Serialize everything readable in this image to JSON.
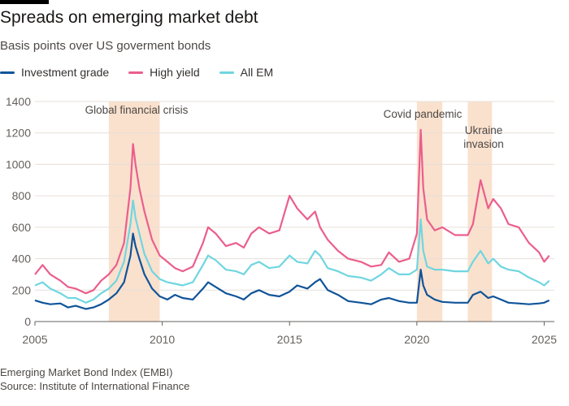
{
  "title": "Spreads on emerging market debt",
  "subtitle": "Basis points over US goverment bonds",
  "source_note": "Emerging Market Bond Index (EMBI)",
  "source": "Source: Institute of International Finance",
  "chart_data": {
    "type": "line",
    "title": "Spreads on emerging market debt",
    "ylabel": "",
    "xlabel": "",
    "xlim": [
      2005.0,
      2025.4
    ],
    "ylim": [
      0,
      1400
    ],
    "yticks": [
      0,
      200,
      400,
      600,
      800,
      1000,
      1200,
      1400
    ],
    "xticks": [
      "2005",
      "2010",
      "2015",
      "2020",
      "2025"
    ],
    "grid": "horizontal",
    "legend": "top-left",
    "shaded_periods": [
      {
        "label": "Global financial crisis",
        "start": 2007.9,
        "end": 2009.9
      },
      {
        "label": "Covid pandemic",
        "start": 2020.0,
        "end": 2021.0
      },
      {
        "label": "Ukraine invasion",
        "start": 2022.0,
        "end": 2022.95
      }
    ],
    "series": [
      {
        "name": "Investment grade",
        "color": "#0f5499",
        "x": [
          2005.0,
          2005.3,
          2005.6,
          2006.0,
          2006.3,
          2006.6,
          2007.0,
          2007.3,
          2007.6,
          2007.9,
          2008.2,
          2008.5,
          2008.75,
          2008.85,
          2008.95,
          2009.1,
          2009.3,
          2009.6,
          2009.9,
          2010.2,
          2010.5,
          2010.8,
          2011.2,
          2011.6,
          2011.8,
          2012.1,
          2012.5,
          2012.9,
          2013.2,
          2013.5,
          2013.8,
          2014.2,
          2014.6,
          2015.0,
          2015.3,
          2015.7,
          2016.0,
          2016.2,
          2016.5,
          2016.9,
          2017.3,
          2017.8,
          2018.2,
          2018.6,
          2018.9,
          2019.3,
          2019.7,
          2020.0,
          2020.15,
          2020.25,
          2020.4,
          2020.7,
          2021.0,
          2021.5,
          2022.0,
          2022.2,
          2022.5,
          2022.8,
          2023.0,
          2023.3,
          2023.6,
          2024.0,
          2024.4,
          2024.8,
          2025.0,
          2025.2
        ],
        "y": [
          135,
          120,
          110,
          115,
          90,
          100,
          80,
          90,
          110,
          140,
          180,
          250,
          420,
          560,
          480,
          400,
          300,
          210,
          160,
          140,
          170,
          150,
          140,
          210,
          250,
          220,
          180,
          160,
          140,
          180,
          200,
          170,
          160,
          190,
          230,
          210,
          250,
          270,
          200,
          170,
          130,
          120,
          110,
          140,
          150,
          130,
          120,
          120,
          330,
          230,
          170,
          140,
          125,
          120,
          120,
          170,
          190,
          150,
          160,
          140,
          120,
          115,
          110,
          115,
          120,
          135
        ]
      },
      {
        "name": "High yield",
        "color": "#eb5e8d",
        "x": [
          2005.0,
          2005.3,
          2005.6,
          2006.0,
          2006.3,
          2006.6,
          2007.0,
          2007.3,
          2007.6,
          2007.9,
          2008.2,
          2008.5,
          2008.75,
          2008.85,
          2008.95,
          2009.1,
          2009.3,
          2009.6,
          2009.9,
          2010.2,
          2010.5,
          2010.8,
          2011.2,
          2011.6,
          2011.8,
          2012.1,
          2012.5,
          2012.9,
          2013.2,
          2013.5,
          2013.8,
          2014.2,
          2014.6,
          2015.0,
          2015.3,
          2015.7,
          2016.0,
          2016.2,
          2016.5,
          2016.9,
          2017.3,
          2017.8,
          2018.2,
          2018.6,
          2018.9,
          2019.3,
          2019.7,
          2020.0,
          2020.15,
          2020.25,
          2020.4,
          2020.7,
          2021.0,
          2021.5,
          2022.0,
          2022.2,
          2022.5,
          2022.8,
          2023.0,
          2023.3,
          2023.6,
          2024.0,
          2024.4,
          2024.8,
          2025.0,
          2025.2
        ],
        "y": [
          300,
          360,
          300,
          260,
          220,
          210,
          180,
          200,
          260,
          300,
          360,
          500,
          850,
          1130,
          1000,
          850,
          700,
          520,
          420,
          380,
          340,
          320,
          350,
          500,
          600,
          560,
          480,
          500,
          470,
          560,
          600,
          560,
          580,
          800,
          720,
          650,
          700,
          600,
          520,
          450,
          400,
          380,
          350,
          360,
          440,
          380,
          400,
          560,
          1220,
          850,
          650,
          580,
          600,
          550,
          550,
          620,
          900,
          720,
          780,
          720,
          620,
          600,
          500,
          440,
          380,
          420
        ]
      },
      {
        "name": "All EM",
        "color": "#6fd6e0",
        "x": [
          2005.0,
          2005.3,
          2005.6,
          2006.0,
          2006.3,
          2006.6,
          2007.0,
          2007.3,
          2007.6,
          2007.9,
          2008.2,
          2008.5,
          2008.75,
          2008.85,
          2008.95,
          2009.1,
          2009.3,
          2009.6,
          2009.9,
          2010.2,
          2010.5,
          2010.8,
          2011.2,
          2011.6,
          2011.8,
          2012.1,
          2012.5,
          2012.9,
          2013.2,
          2013.5,
          2013.8,
          2014.2,
          2014.6,
          2015.0,
          2015.3,
          2015.7,
          2016.0,
          2016.2,
          2016.5,
          2016.9,
          2017.3,
          2017.8,
          2018.2,
          2018.6,
          2018.9,
          2019.3,
          2019.7,
          2020.0,
          2020.15,
          2020.25,
          2020.4,
          2020.7,
          2021.0,
          2021.5,
          2022.0,
          2022.2,
          2022.5,
          2022.8,
          2023.0,
          2023.3,
          2023.6,
          2024.0,
          2024.4,
          2024.8,
          2025.0,
          2025.2
        ],
        "y": [
          230,
          250,
          210,
          180,
          150,
          150,
          120,
          140,
          180,
          210,
          260,
          380,
          620,
          770,
          660,
          560,
          430,
          320,
          270,
          250,
          240,
          230,
          250,
          360,
          420,
          390,
          330,
          320,
          300,
          360,
          380,
          340,
          350,
          420,
          380,
          370,
          450,
          420,
          340,
          320,
          290,
          280,
          260,
          300,
          340,
          300,
          300,
          330,
          650,
          450,
          350,
          330,
          330,
          320,
          320,
          380,
          450,
          370,
          400,
          350,
          330,
          320,
          280,
          250,
          230,
          260
        ]
      }
    ]
  }
}
